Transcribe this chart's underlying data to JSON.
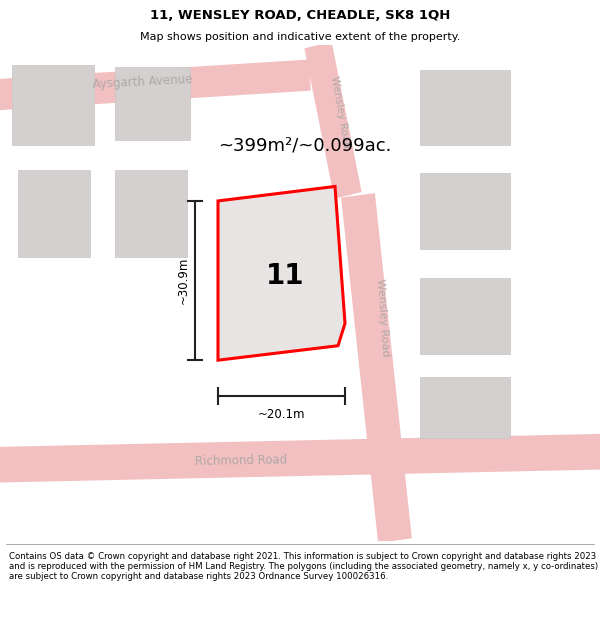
{
  "title": "11, WENSLEY ROAD, CHEADLE, SK8 1QH",
  "subtitle": "Map shows position and indicative extent of the property.",
  "footer": "Contains OS data © Crown copyright and database right 2021. This information is subject to Crown copyright and database rights 2023 and is reproduced with the permission of HM Land Registry. The polygons (including the associated geometry, namely x, y co-ordinates) are subject to Crown copyright and database rights 2023 Ordnance Survey 100026316.",
  "area_label": "~399m²/~0.099ac.",
  "width_label": "~20.1m",
  "height_label": "~30.9m",
  "plot_number": "11",
  "map_bg": "#f7f3f3",
  "plot_fill": "#e8e4e4",
  "plot_outline": "#ff0000",
  "road_fill": "#f2c0c0",
  "road_edge": "#e8a8a8",
  "building_fill": "#d4d0d0",
  "building_edge": "#c8c4c4",
  "street_color": "#b0a8a8",
  "dim_color": "#222222",
  "title_fontsize": 9.5,
  "subtitle_fontsize": 8.0,
  "footer_fontsize": 6.2,
  "area_fontsize": 13,
  "plot_label_fontsize": 20,
  "dim_fontsize": 8.5,
  "street_fontsize": 8.5
}
